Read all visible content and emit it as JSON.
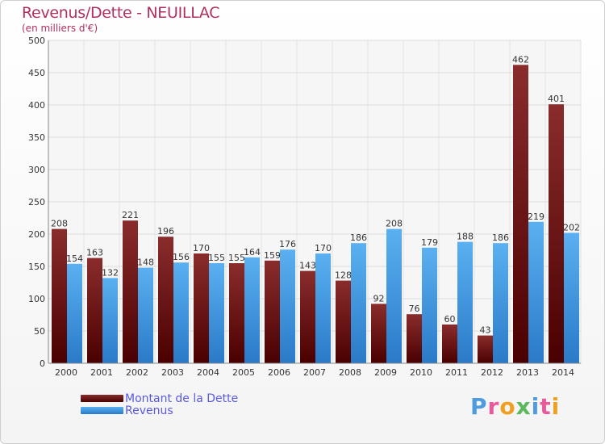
{
  "title": "Revenus/Dette - NEUILLAC",
  "subtitle": "(en milliers d'€)",
  "logo_text": "Proxiti",
  "colors": {
    "dette": "#7a1a1a",
    "revenus": "#4a9fe0",
    "title": "#b03060",
    "legend_text": "#5a5ae0"
  },
  "chart_data": {
    "type": "bar",
    "title": "Revenus/Dette - NEUILLAC",
    "subtitle": "(en milliers d'€)",
    "categories": [
      "2000",
      "2001",
      "2002",
      "2003",
      "2004",
      "2005",
      "2006",
      "2007",
      "2008",
      "2009",
      "2010",
      "2011",
      "2012",
      "2013",
      "2014"
    ],
    "series": [
      {
        "name": "Montant de la Dette",
        "values": [
          208,
          163,
          221,
          196,
          170,
          155,
          159,
          143,
          128,
          92,
          76,
          60,
          43,
          462,
          401
        ]
      },
      {
        "name": "Revenus",
        "values": [
          154,
          132,
          148,
          156,
          155,
          164,
          176,
          170,
          186,
          208,
          179,
          188,
          186,
          219,
          202
        ]
      }
    ],
    "yticks": [
      0,
      50,
      100,
      150,
      200,
      250,
      300,
      350,
      400,
      450,
      500
    ],
    "ylim": [
      0,
      500
    ],
    "grid": true,
    "legend": "bottom-left"
  }
}
